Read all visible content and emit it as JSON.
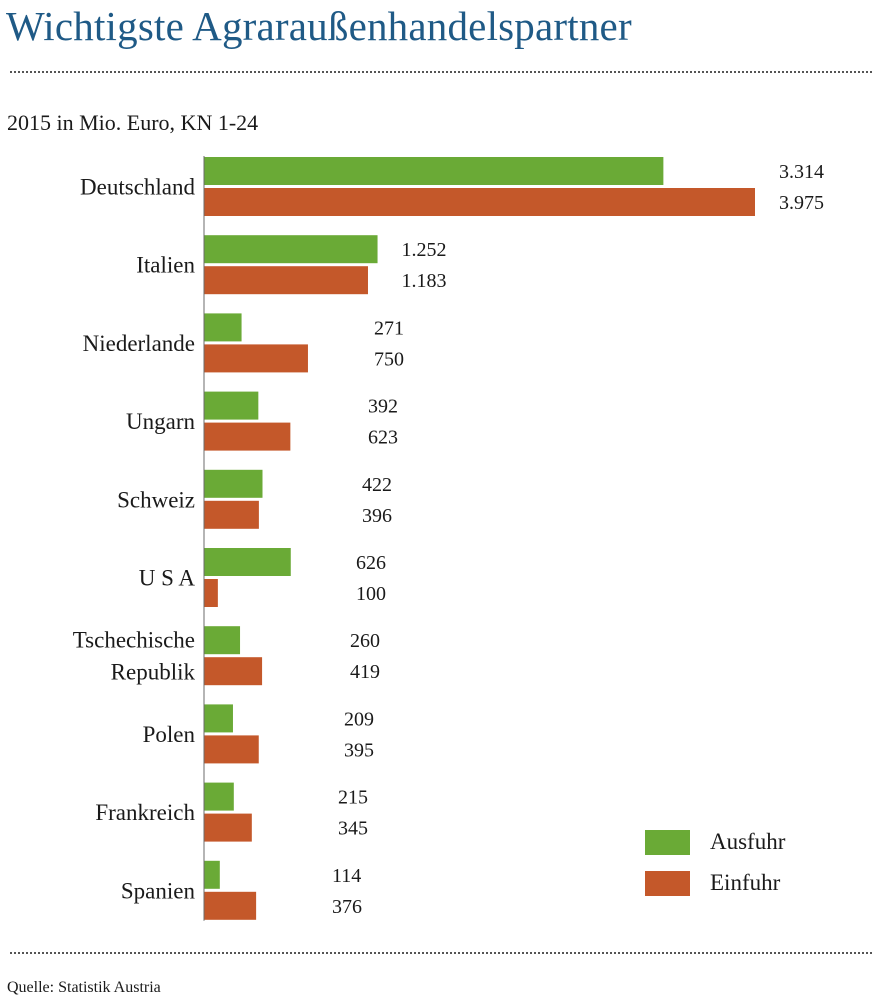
{
  "title": "Wichtigste Agraraußenhandelspartner",
  "subtitle": "2015 in Mio. Euro, KN 1-24",
  "source": "Quelle: Statistik Austria",
  "colors": {
    "Ausfuhr": "#6aaa36",
    "Einfuhr": "#c4582a",
    "title": "#1f5a86"
  },
  "chart_data": {
    "type": "bar",
    "orientation": "horizontal",
    "categories": [
      [
        "Deutschland"
      ],
      [
        "Italien"
      ],
      [
        "Niederlande"
      ],
      [
        "Ungarn"
      ],
      [
        "Schweiz"
      ],
      [
        "U S A"
      ],
      [
        "Tschechische",
        "Republik"
      ],
      [
        "Polen"
      ],
      [
        "Frankreich"
      ],
      [
        "Spanien"
      ]
    ],
    "series": [
      {
        "name": "Ausfuhr",
        "values": [
          3314,
          1252,
          271,
          392,
          422,
          626,
          260,
          209,
          215,
          114
        ],
        "labels": [
          "3.314",
          "1.252",
          "271",
          "392",
          "422",
          "626",
          "260",
          "209",
          "215",
          "114"
        ]
      },
      {
        "name": "Einfuhr",
        "values": [
          3975,
          1183,
          750,
          623,
          396,
          100,
          419,
          395,
          345,
          376
        ],
        "labels": [
          "3.975",
          "1.183",
          "750",
          "623",
          "396",
          "100",
          "419",
          "395",
          "345",
          "376"
        ]
      }
    ],
    "xlim": [
      0,
      4000
    ],
    "grid": false,
    "legend_position": "bottom-right"
  }
}
